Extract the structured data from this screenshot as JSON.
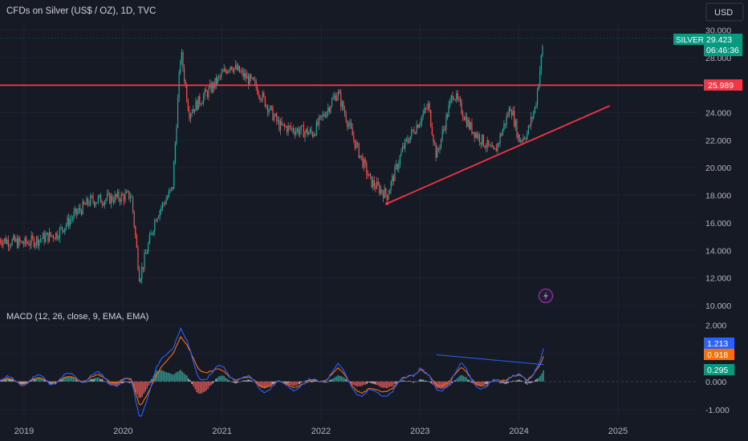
{
  "header": {
    "title": "CFDs on Silver (US$ / OZ), 1D, TVC",
    "currency": "USD"
  },
  "price_badge": {
    "symbol": "SILVER",
    "price": "29.423",
    "countdown": "06:46:36"
  },
  "level_badge": {
    "value": "25.989"
  },
  "macd": {
    "title": "MACD (12, 26, close, 9, EMA, EMA)",
    "macd_value": "1.213",
    "signal_value": "0.918",
    "hist_value": "0.295"
  },
  "colors": {
    "bg": "#161a25",
    "up": "#26a69a",
    "down": "#ef5350",
    "red_line": "#f23645",
    "macd": "#2962ff",
    "signal": "#ff6d00",
    "text": "#b2b5be"
  },
  "icons": {
    "lightning": "lightning-icon"
  },
  "chart_data": [
    {
      "type": "candlestick",
      "title": "CFDs on Silver (US$ / OZ), 1D, TVC",
      "y_ticks": [
        "30.000",
        "28.000",
        "26.000",
        "24.000",
        "22.000",
        "20.000",
        "18.000",
        "16.000",
        "14.000",
        "12.000",
        "10.000"
      ],
      "x_ticks": [
        "2019",
        "2020",
        "2021",
        "2022",
        "2023",
        "2024",
        "2025"
      ],
      "ylim": [
        10,
        30.2
      ],
      "x": [
        "2018-10",
        "2019-01",
        "2019-05",
        "2019-07",
        "2019-09",
        "2019-12",
        "2020-02",
        "2020-03",
        "2020-05",
        "2020-07",
        "2020-08",
        "2020-09",
        "2020-12",
        "2021-02",
        "2021-05",
        "2021-08",
        "2021-12",
        "2022-03",
        "2022-05",
        "2022-07",
        "2022-09",
        "2022-11",
        "2023-02",
        "2023-03",
        "2023-05",
        "2023-07",
        "2023-10",
        "2023-12",
        "2024-01",
        "2024-02",
        "2024-03",
        "2024-04"
      ],
      "close": [
        14.8,
        14.5,
        15.2,
        16.5,
        17.6,
        17.8,
        18.0,
        12.0,
        16.5,
        18.5,
        28.5,
        24.0,
        26.0,
        27.5,
        26.0,
        23.0,
        22.5,
        25.5,
        22.0,
        19.0,
        18.0,
        21.5,
        24.5,
        20.8,
        25.5,
        23.0,
        21.0,
        24.5,
        22.0,
        22.5,
        24.5,
        29.4
      ],
      "horizontal_level": 25.989,
      "trendline": {
        "from": [
          "2022-09",
          17.4
        ],
        "to": [
          "2024-12",
          24.5
        ]
      }
    },
    {
      "type": "macd",
      "title": "MACD (12, 26, close, 9, EMA, EMA)",
      "y_ticks": [
        "2.000",
        "1.000",
        "0.000",
        "-1.000"
      ],
      "ylim": [
        -1.4,
        2.5
      ],
      "x": [
        "2018-10",
        "2019-06",
        "2019-09",
        "2020-02",
        "2020-03",
        "2020-05",
        "2020-08",
        "2020-10",
        "2021-01",
        "2021-06",
        "2021-12",
        "2022-03",
        "2022-06",
        "2022-10",
        "2023-01",
        "2023-03",
        "2023-06",
        "2023-09",
        "2023-12",
        "2024-02",
        "2024-04"
      ],
      "macd": [
        0.0,
        0.1,
        0.2,
        -0.1,
        -1.2,
        0.3,
        1.9,
        0.2,
        0.4,
        -0.2,
        -0.1,
        0.5,
        -0.5,
        -0.3,
        0.6,
        -0.4,
        0.5,
        -0.3,
        0.3,
        -0.1,
        1.213
      ],
      "signal": [
        0.0,
        0.05,
        0.15,
        0.0,
        -0.8,
        0.1,
        1.6,
        0.5,
        0.3,
        -0.1,
        -0.1,
        0.4,
        -0.4,
        -0.2,
        0.5,
        -0.2,
        0.4,
        -0.2,
        0.25,
        0.0,
        0.918
      ],
      "histogram_last": 0.295,
      "divergence_line": {
        "from": [
          "2023-03",
          0.95
        ],
        "to": [
          "2024-04",
          0.6
        ]
      }
    }
  ]
}
